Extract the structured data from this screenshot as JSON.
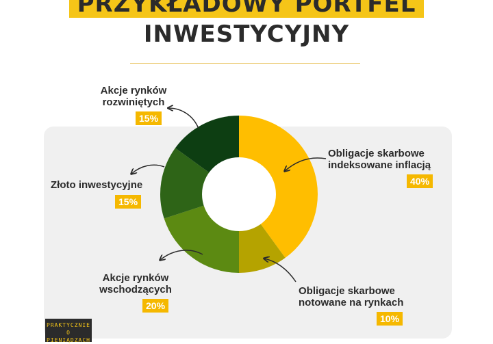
{
  "title": {
    "line1": "PRZYKŁADOWY PORTFEL",
    "line2": "INWESTYCYJNY"
  },
  "brand": {
    "line1": "PRAKTYCZNIE O",
    "line2": "PIENIĄDZACH"
  },
  "chart_data": {
    "type": "pie",
    "donut": true,
    "slices": [
      {
        "label": "Obligacje skarbowe indeksowane inflacją",
        "line1": "Obligacje skarbowe",
        "line2": "indeksowane inflacją",
        "value": 40,
        "display": "40%",
        "color": "#ffbe00"
      },
      {
        "label": "Obligacje skarbowe notowane na rynkach",
        "line1": "Obligacje skarbowe",
        "line2": "notowane na rynkach",
        "value": 10,
        "display": "10%",
        "color": "#b5a300"
      },
      {
        "label": "Akcje rynków wschodzących",
        "line1": "Akcje rynków",
        "line2": "wschodzących",
        "value": 20,
        "display": "20%",
        "color": "#5c8a12"
      },
      {
        "label": "Złoto inwestycyjne",
        "line1": "Złoto inwestycyjne",
        "line2": "",
        "value": 15,
        "display": "15%",
        "color": "#2e6417"
      },
      {
        "label": "Akcje rynków rozwiniętych",
        "line1": "Akcje rynków",
        "line2": "rozwiniętych",
        "value": 15,
        "display": "15%",
        "color": "#0d3e12"
      }
    ]
  }
}
